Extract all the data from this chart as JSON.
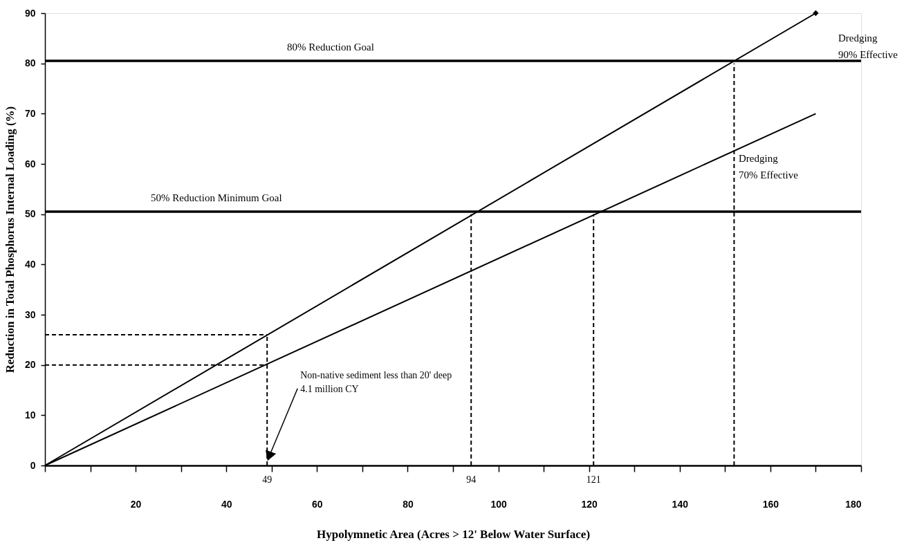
{
  "chart_data": {
    "type": "line",
    "xlabel": "Hypolymnetic Area (Acres > 12' Below Water Surface)",
    "ylabel": "Reduction in Total Phosphorus Internal Loading (%)",
    "xlim": [
      0,
      180
    ],
    "ylim": [
      0,
      90
    ],
    "xticks": [
      {
        "value": 0,
        "label": null
      },
      {
        "value": 10,
        "label": null
      },
      20,
      {
        "value": 30,
        "label": null
      },
      40,
      {
        "value": 50,
        "label": null
      },
      60,
      {
        "value": 70,
        "label": null
      },
      80,
      {
        "value": 90,
        "label": null
      },
      100,
      {
        "value": 110,
        "label": null
      },
      120,
      {
        "value": 130,
        "label": null
      },
      140,
      {
        "value": 150,
        "label": null
      },
      160,
      {
        "value": 170,
        "label": null
      },
      180
    ],
    "yticks": [
      0,
      10,
      20,
      30,
      40,
      50,
      60,
      70,
      80,
      90
    ],
    "grid": false,
    "marker": "none",
    "series": [
      {
        "color": "#000000",
        "x": [
          0,
          170
        ],
        "values": [
          0,
          90
        ],
        "line_style": "solid"
      },
      {
        "color": "#000000",
        "x": [
          0,
          170
        ],
        "values": [
          0,
          70
        ],
        "line_style": "solid"
      },
      {
        "type": "scatter",
        "color": "#000000",
        "x": [
          170
        ],
        "values": [
          90
        ],
        "marker": "diamond"
      },
      {
        "color": "#000000",
        "x": [
          0,
          49
        ],
        "values": [
          26,
          26
        ],
        "line_style": "dashed"
      },
      {
        "color": "#000000",
        "x": [
          0,
          49
        ],
        "values": [
          20,
          20
        ],
        "line_style": "dashed"
      },
      {
        "color": "#000000",
        "x": [
          49,
          49
        ],
        "values": [
          0,
          26
        ],
        "line_style": "dashed"
      },
      {
        "color": "#000000",
        "x": [
          94,
          94
        ],
        "values": [
          0,
          50
        ],
        "line_style": "dashed"
      },
      {
        "color": "#000000",
        "x": [
          121,
          121
        ],
        "values": [
          0,
          50
        ],
        "line_style": "dashed"
      },
      {
        "color": "#000000",
        "x": [
          152,
          152
        ],
        "values": [
          0,
          80
        ],
        "line_style": "dashed"
      }
    ],
    "ref_lines": [
      {
        "axis": "y",
        "value": 80.5,
        "label": "80% Reduction Goal",
        "color": "#000000"
      },
      {
        "axis": "y",
        "value": 50.5,
        "label": "50% Reduction Minimum Goal",
        "color": "#000000"
      }
    ],
    "annotations": [
      "Dredging\n90% Effective",
      "Dredging\n70% Effective",
      {
        "text": "Non-native sediment less than 20' deep\n4.1 million CY",
        "x": 49,
        "y": 1
      },
      {
        "text": "49",
        "x": 49,
        "y": 0
      },
      {
        "text": "94",
        "x": 94,
        "y": 0
      },
      {
        "text": "121",
        "x": 121,
        "y": 0
      }
    ]
  }
}
